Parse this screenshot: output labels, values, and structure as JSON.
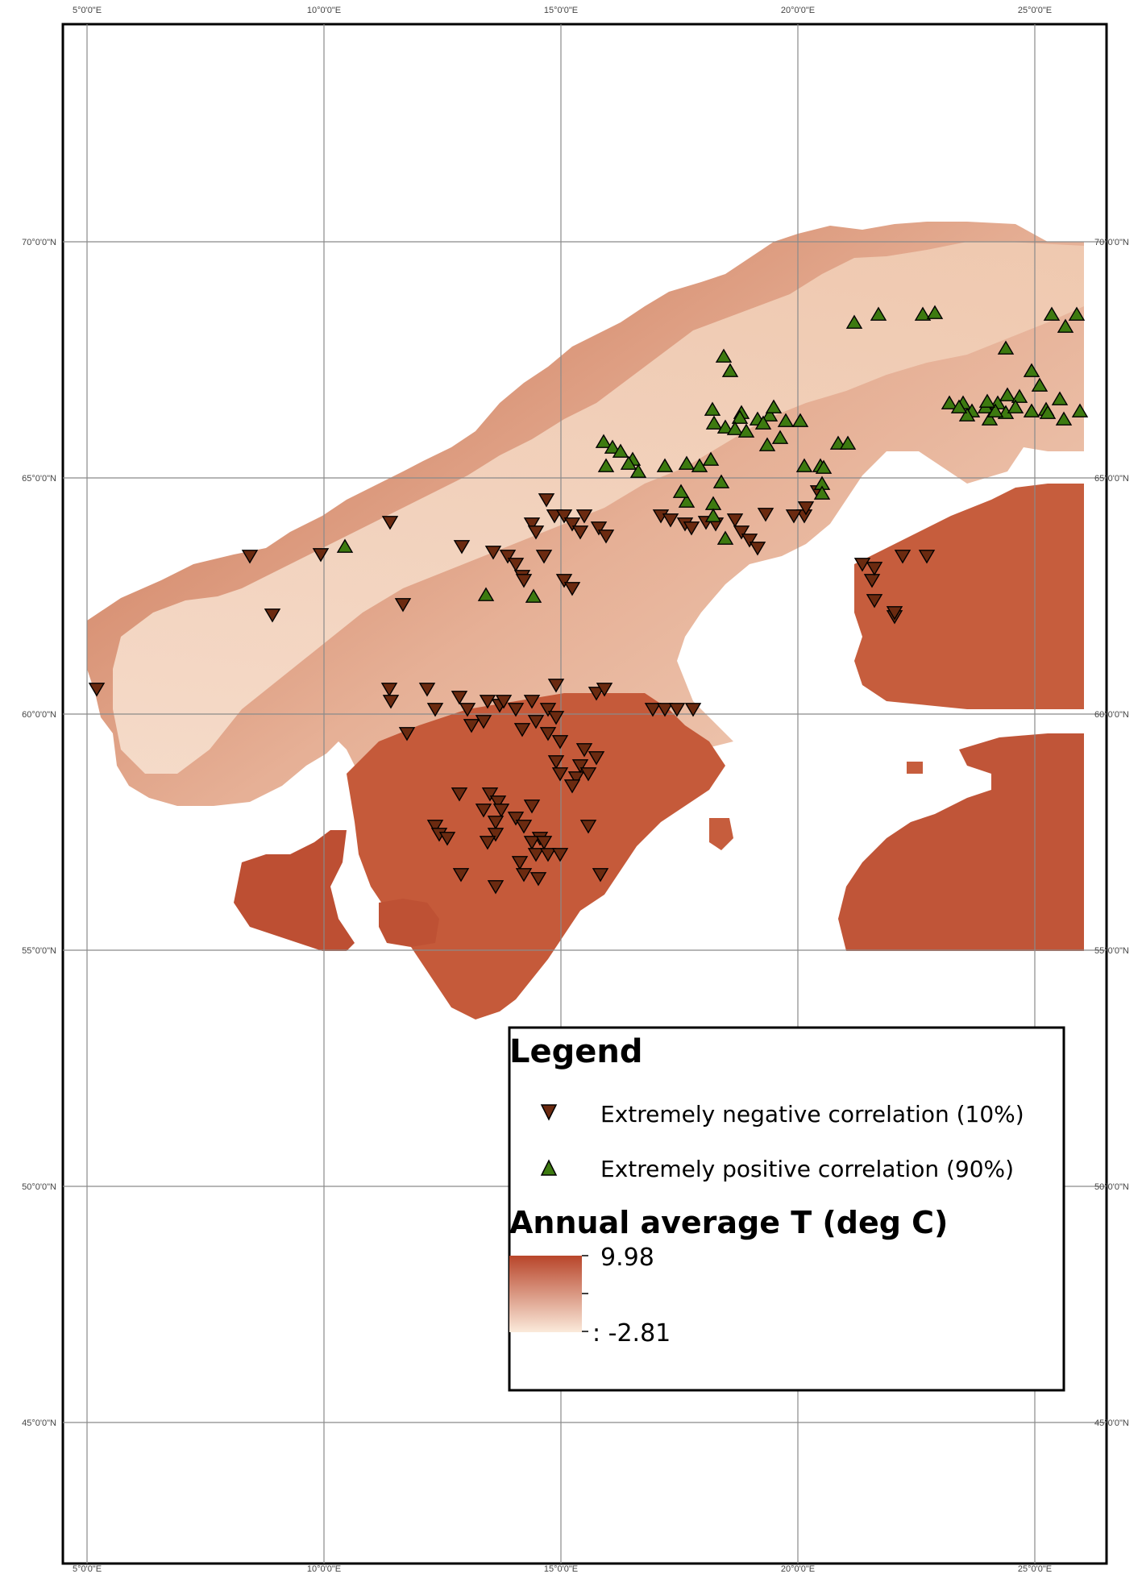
{
  "map": {
    "longitude_ticks": [
      {
        "deg": 5,
        "label": "5°0'0\"E"
      },
      {
        "deg": 10,
        "label": "10°0'0\"E"
      },
      {
        "deg": 15,
        "label": "15°0'0\"E"
      },
      {
        "deg": 20,
        "label": "20°0'0\"E"
      },
      {
        "deg": 25,
        "label": "25°0'0\"E"
      }
    ],
    "latitude_ticks": [
      {
        "deg": 70,
        "label": "70°0'0\"N"
      },
      {
        "deg": 65,
        "label": "65°0'0\"N"
      },
      {
        "deg": 60,
        "label": "60°0'0\"N"
      },
      {
        "deg": 55,
        "label": "55°0'0\"N"
      },
      {
        "deg": 50,
        "label": "50°0'0\"N"
      },
      {
        "deg": 45,
        "label": "45°0'0\"N"
      }
    ],
    "colors": {
      "warm": "#b8452a",
      "cold": "#fbeadb",
      "negative_marker": "#6b2a10",
      "positive_marker": "#3d7a10",
      "grid": "#8a8a8a"
    }
  },
  "legend": {
    "title": "Legend",
    "items": [
      {
        "label": "Extremely negative correlation (10%)",
        "marker": "triangle-down"
      },
      {
        "label": "Extremely positive correlation (90%)",
        "marker": "triangle-up"
      }
    ],
    "ramp_title": "Annual average T (deg C)",
    "ramp_max": "9.98",
    "ramp_min": ": -2.81"
  }
}
